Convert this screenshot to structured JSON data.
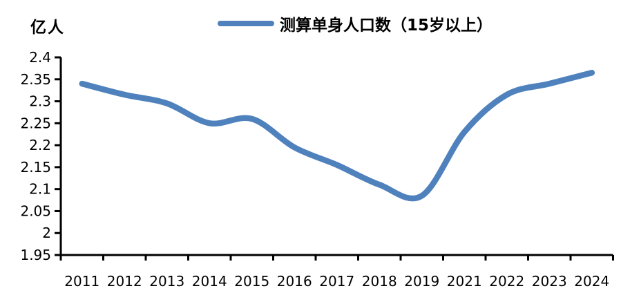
{
  "header": {
    "unit_label": "亿人",
    "legend": {
      "label": "测算单身人口数（15岁以上）",
      "line_color": "#4F81BD"
    }
  },
  "chart_data": {
    "type": "line",
    "title": "测算单身人口数（15岁以上）",
    "unit": "亿人",
    "categories": [
      "2011",
      "2012",
      "2013",
      "2014",
      "2015",
      "2016",
      "2017",
      "2018",
      "2019",
      "2021",
      "2022",
      "2023",
      "2024"
    ],
    "series": [
      {
        "name": "测算单身人口数（15岁以上）",
        "color": "#4F81BD",
        "values": [
          2.34,
          2.315,
          2.295,
          2.25,
          2.26,
          2.195,
          2.155,
          2.11,
          2.085,
          2.23,
          2.315,
          2.34,
          2.365
        ]
      }
    ],
    "y_ticks": [
      1.95,
      2,
      2.05,
      2.1,
      2.15,
      2.2,
      2.25,
      2.3,
      2.35,
      2.4
    ],
    "ylim": [
      1.95,
      2.4
    ],
    "smooth": true,
    "grid": false,
    "legend_position": "top",
    "axis_color": "#000000"
  }
}
